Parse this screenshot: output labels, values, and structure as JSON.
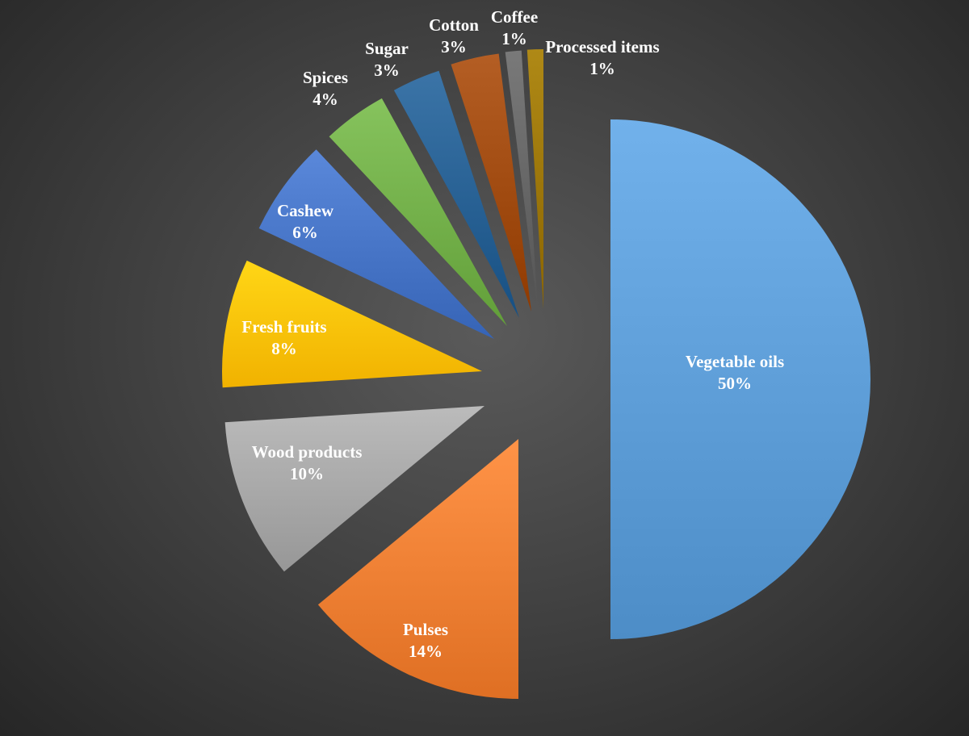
{
  "chart_data": {
    "type": "pie",
    "title": "",
    "exploded": true,
    "slices": [
      {
        "label": "Vegetable oils",
        "value": 50,
        "pct_label": "50%",
        "color": "#5b9bd5"
      },
      {
        "label": "Pulses",
        "value": 14,
        "pct_label": "14%",
        "color": "#ed7d31"
      },
      {
        "label": "Wood products",
        "value": 10,
        "pct_label": "10%",
        "color": "#a5a5a5"
      },
      {
        "label": "Fresh fruits",
        "value": 8,
        "pct_label": "8%",
        "color": "#ffc000"
      },
      {
        "label": "Cashew",
        "value": 6,
        "pct_label": "6%",
        "color": "#4472c4"
      },
      {
        "label": "Spices",
        "value": 4,
        "pct_label": "4%",
        "color": "#70ad47"
      },
      {
        "label": "Sugar",
        "value": 3,
        "pct_label": "3%",
        "color": "#255e91"
      },
      {
        "label": "Cotton",
        "value": 3,
        "pct_label": "3%",
        "color": "#9e480e"
      },
      {
        "label": "Coffee",
        "value": 1,
        "pct_label": "1%",
        "color": "#636363"
      },
      {
        "label": "Processed items",
        "value": 1,
        "pct_label": "1%",
        "color": "#997300"
      }
    ]
  }
}
